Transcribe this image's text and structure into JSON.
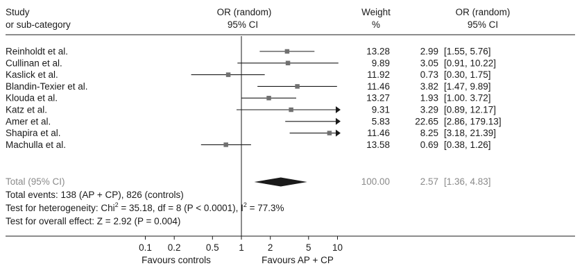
{
  "chart_data": {
    "type": "forest",
    "headers": {
      "study_line1": "Study",
      "study_line2": "or sub-category",
      "plot_line1": "OR (random)",
      "plot_line2": "95% CI",
      "weight_line1": "Weight",
      "weight_line2": "%",
      "ci_line1": "OR (random)",
      "ci_line2": "95% CI"
    },
    "studies": [
      {
        "name": "Reinholdt et al.",
        "weight": "13.28",
        "or": 2.99,
        "lo": 1.55,
        "hi": 5.76,
        "or_text": "2.99",
        "ci_text": "[1.55, 5.76]"
      },
      {
        "name": "Cullinan et al.",
        "weight": "9.89",
        "or": 3.05,
        "lo": 0.91,
        "hi": 10.22,
        "or_text": "3.05",
        "ci_text": "[0.91, 10.22]"
      },
      {
        "name": "Kaslick et al.",
        "weight": "11.92",
        "or": 0.73,
        "lo": 0.3,
        "hi": 1.75,
        "or_text": "0.73",
        "ci_text": "[0.30, 1.75]"
      },
      {
        "name": "Blandin-Texier et al.",
        "weight": "11.46",
        "or": 3.82,
        "lo": 1.47,
        "hi": 9.89,
        "or_text": "3.82",
        "ci_text": "[1.47, 9.89]"
      },
      {
        "name": "Klouda et al.",
        "weight": "13.27",
        "or": 1.93,
        "lo": 1.0,
        "hi": 3.72,
        "or_text": "1.93",
        "ci_text": "[1.00. 3.72]"
      },
      {
        "name": "Katz et al.",
        "weight": "9.31",
        "or": 3.29,
        "lo": 0.89,
        "hi": 12.17,
        "or_text": "3.29",
        "ci_text": "[0.89, 12.17]"
      },
      {
        "name": "Amer et al.",
        "weight": "5.83",
        "or": 22.65,
        "lo": 2.86,
        "hi": 179.13,
        "or_text": "22.65",
        "ci_text": "[2.86, 179.13]"
      },
      {
        "name": "Shapira et al.",
        "weight": "11.46",
        "or": 8.25,
        "lo": 3.18,
        "hi": 21.39,
        "or_text": "8.25",
        "ci_text": "[3.18, 21.39]"
      },
      {
        "name": "Machulla et al.",
        "weight": "13.58",
        "or": 0.69,
        "lo": 0.38,
        "hi": 1.26,
        "or_text": "0.69",
        "ci_text": "[0.38, 1.26]"
      }
    ],
    "total": {
      "name": "Total (95% CI)",
      "weight": "100.00",
      "or": 2.57,
      "lo": 1.36,
      "hi": 4.83,
      "or_text": "2.57",
      "ci_text": "[1.36, 4.83]"
    },
    "footer": {
      "events": "Total events: 138 (AP + CP), 826 (controls)",
      "heterogeneity_prefix": "Test for heterogeneity: Chi",
      "heterogeneity_sup1": "2",
      "heterogeneity_mid": " = 35.18, df = 8 (P < 0.0001), I",
      "heterogeneity_sup2": "2",
      "heterogeneity_suffix": " = 77.3%",
      "overall": "Test for overall effect: Z = 2.92 (P = 0.004)"
    },
    "x_axis": {
      "scale": "log",
      "ticks": [
        0.1,
        0.2,
        0.5,
        1,
        2,
        5,
        10
      ],
      "tick_labels": [
        "0.1",
        "0.2",
        "0.5",
        "1",
        "2",
        "5",
        "10"
      ],
      "display_range": [
        0.1,
        10
      ]
    },
    "favours_left": "Favours controls",
    "favours_right": "Favours AP + CP",
    "colors": {
      "ink": "#1a1a1a",
      "box": "#707070",
      "grey_text": "#8a8a8a"
    }
  }
}
